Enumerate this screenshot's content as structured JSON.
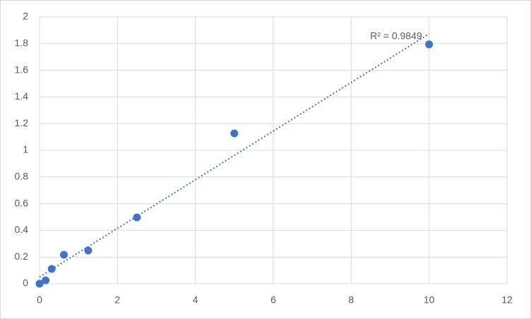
{
  "chart_data": {
    "type": "scatter",
    "x": [
      0,
      0.156,
      0.3125,
      0.625,
      1.25,
      2.5,
      5,
      10
    ],
    "series": [
      {
        "color": "#4472c4",
        "values": [
          0,
          0.025,
          0.111,
          0.217,
          0.249,
          0.497,
          1.127,
          1.794
        ]
      }
    ],
    "trendline": "linear",
    "annotation": "R² = 0.9849",
    "xlim": [
      0,
      12
    ],
    "xticks": [
      0,
      2,
      4,
      6,
      8,
      10,
      12
    ],
    "ylim": [
      0,
      2
    ],
    "yticks": [
      0,
      0.2,
      0.4,
      0.6,
      0.8,
      1,
      1.2,
      1.4,
      1.6,
      1.8,
      2
    ],
    "grid": true
  }
}
